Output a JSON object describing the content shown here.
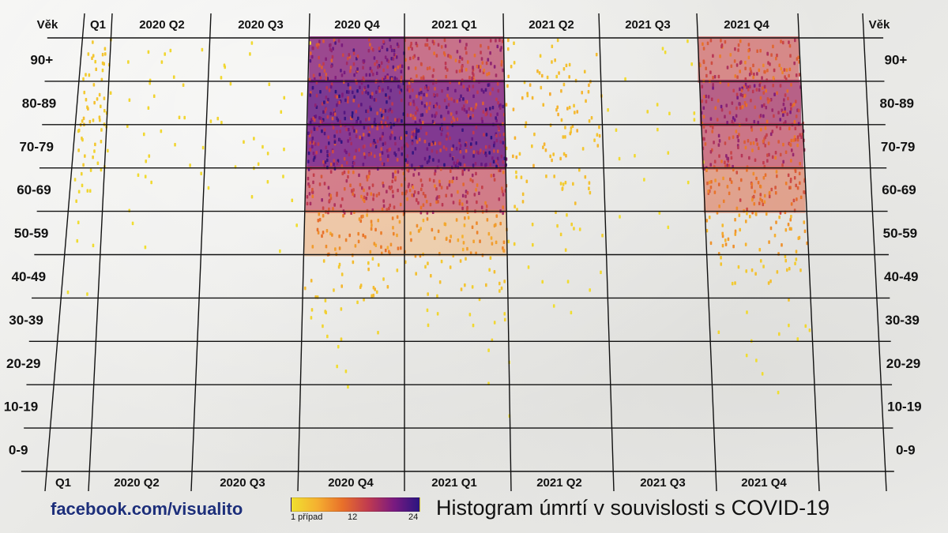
{
  "chart_data": {
    "type": "heatmap",
    "title": "Histogram úmrtí v souvislosti s COVID-19",
    "row_header": "Věk",
    "quarters": [
      "Q1",
      "2020 Q2",
      "2020 Q3",
      "2020 Q4",
      "2021 Q1",
      "2021 Q2",
      "2021 Q3",
      "2021 Q4"
    ],
    "age_groups": [
      "90+",
      "80-89",
      "70-79",
      "60-69",
      "50-59",
      "40-49",
      "30-39",
      "20-29",
      "10-19",
      "0-9"
    ],
    "intensity": [
      [
        0.12,
        0.05,
        0.04,
        0.9,
        0.75,
        0.18,
        0.03,
        0.65
      ],
      [
        0.14,
        0.06,
        0.05,
        1.0,
        0.92,
        0.22,
        0.04,
        0.8
      ],
      [
        0.1,
        0.05,
        0.05,
        0.95,
        0.98,
        0.2,
        0.04,
        0.72
      ],
      [
        0.06,
        0.03,
        0.03,
        0.7,
        0.7,
        0.15,
        0.02,
        0.55
      ],
      [
        0.02,
        0.01,
        0.01,
        0.4,
        0.35,
        0.08,
        0.01,
        0.3
      ],
      [
        0.01,
        0.0,
        0.0,
        0.18,
        0.15,
        0.03,
        0.0,
        0.14
      ],
      [
        0.0,
        0.0,
        0.0,
        0.07,
        0.06,
        0.01,
        0.0,
        0.05
      ],
      [
        0.0,
        0.0,
        0.0,
        0.02,
        0.02,
        0.0,
        0.0,
        0.02
      ],
      [
        0.0,
        0.0,
        0.0,
        0.005,
        0.005,
        0.0,
        0.0,
        0.005
      ],
      [
        0.0,
        0.0,
        0.0,
        0.003,
        0.003,
        0.0,
        0.0,
        0.003
      ]
    ],
    "colorbar": {
      "labels": [
        "1 případ",
        "12",
        "24"
      ],
      "values": [
        1,
        12,
        24
      ]
    },
    "colors": [
      "#f0e030",
      "#f5b030",
      "#e8702a",
      "#c03a50",
      "#7a1a80",
      "#2a1580"
    ],
    "grid": true
  },
  "footer": {
    "link": "facebook.com/visualito",
    "title": "Histogram úmrtí v souvislosti s COVID-19"
  }
}
